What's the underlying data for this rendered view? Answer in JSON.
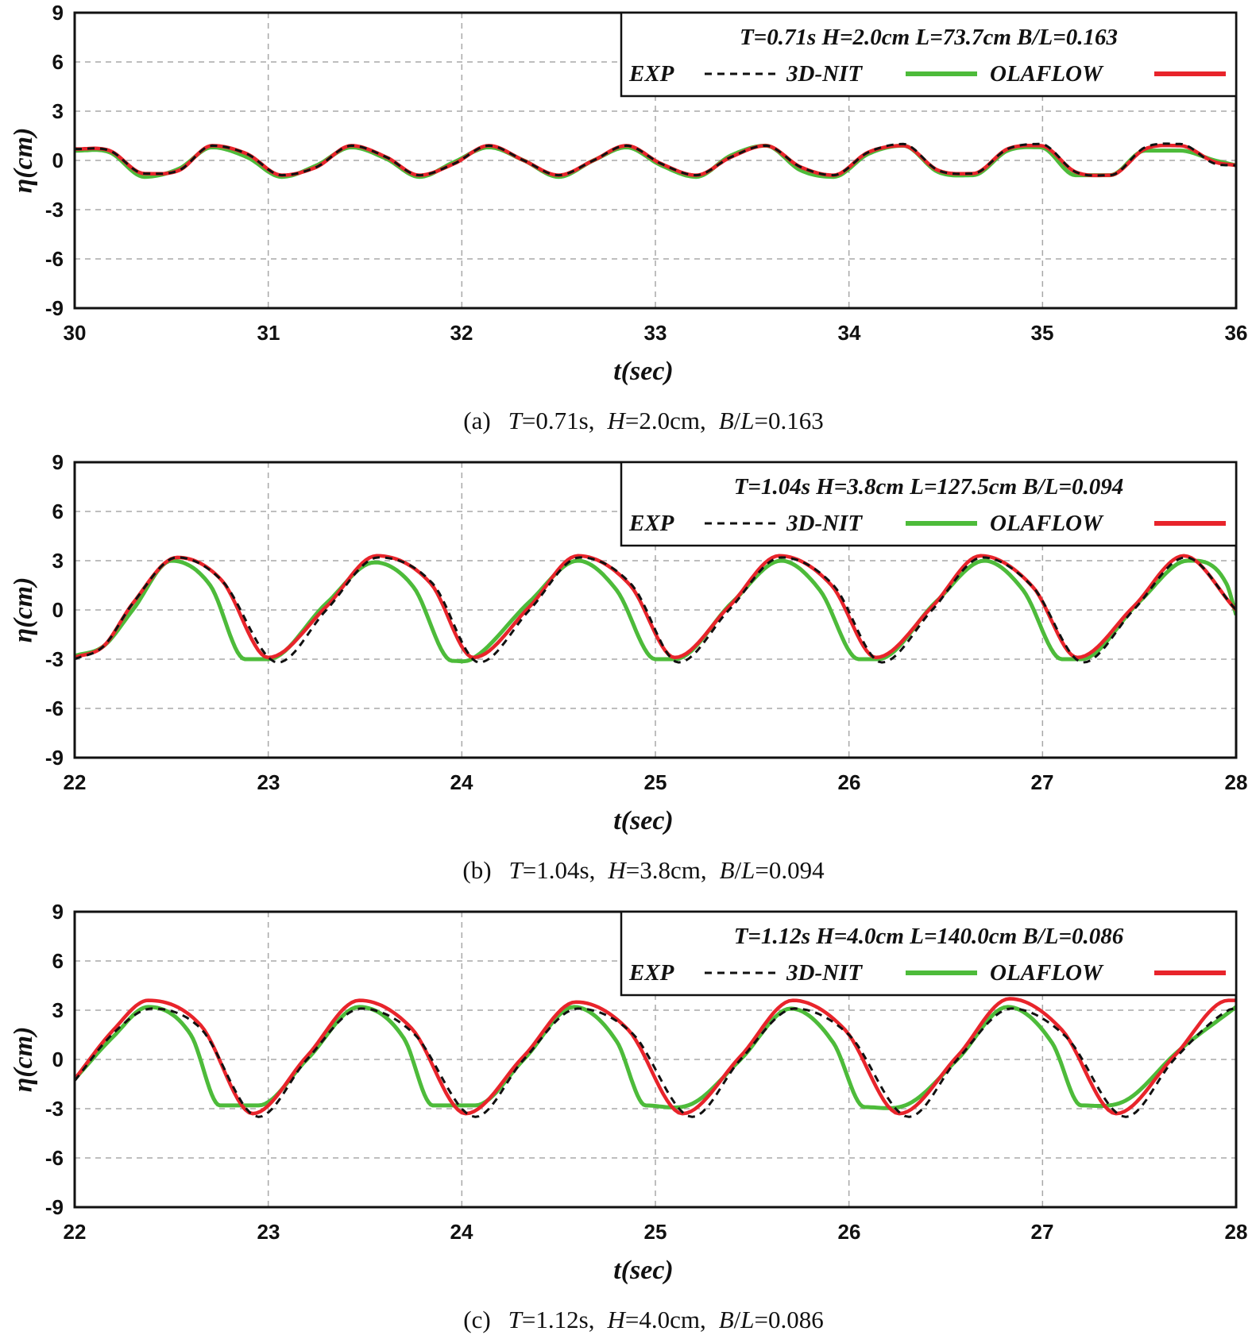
{
  "colors": {
    "exp": "#111111",
    "nit": "#4dbb3a",
    "ola": "#e8242b",
    "grid": "#a8a8a8",
    "frame": "#111111"
  },
  "legend_labels": {
    "exp": "EXP",
    "nit": "3D-NIT",
    "ola": "OLAFLOW"
  },
  "chart_data": [
    {
      "type": "line",
      "title": "T=0.71s  H=2.0cm  L=73.7cm  B/L=0.163",
      "xlabel": "t(sec)",
      "ylabel": "η(cm)",
      "xlim": [
        30,
        36
      ],
      "ylim": [
        -9,
        9
      ],
      "xticks": [
        "30",
        "31",
        "32",
        "33",
        "34",
        "35",
        "36"
      ],
      "yticks": [
        "9",
        "6",
        "3",
        "0",
        "-3",
        "-6",
        "-9"
      ],
      "grid": true,
      "legend_position": "top-right",
      "caption": {
        "prefix": "(a)",
        "T": "=0.71s,",
        "H": "=2.0cm,",
        "BL": "=0.163"
      },
      "series": [
        {
          "name": "EXP",
          "style": "dashed",
          "t_samples": [
            30.0,
            30.18,
            30.36,
            30.54,
            30.71,
            30.89,
            31.07,
            31.25,
            31.43,
            31.61,
            31.78,
            31.96,
            32.14,
            32.32,
            32.5,
            32.68,
            32.85,
            33.03,
            33.21,
            33.39,
            33.57,
            33.75,
            33.92,
            34.1,
            34.28,
            34.46,
            34.64,
            34.82,
            34.99,
            35.17,
            35.35,
            35.53,
            35.71,
            35.89,
            36.0
          ],
          "values": [
            0.7,
            0.6,
            -0.8,
            -0.6,
            0.9,
            0.4,
            -0.9,
            -0.4,
            0.9,
            0.2,
            -0.9,
            -0.2,
            0.9,
            0.0,
            -0.9,
            0.0,
            0.9,
            -0.2,
            -0.9,
            0.2,
            0.9,
            -0.4,
            -0.9,
            0.5,
            1.0,
            -0.6,
            -0.8,
            0.7,
            1.0,
            -0.7,
            -0.9,
            0.8,
            1.0,
            -0.2,
            -0.3
          ]
        },
        {
          "name": "3D-NIT",
          "style": "solid",
          "t_samples": [
            30.0,
            30.18,
            30.36,
            30.54,
            30.71,
            30.89,
            31.07,
            31.25,
            31.43,
            31.61,
            31.78,
            31.96,
            32.14,
            32.32,
            32.5,
            32.68,
            32.85,
            33.03,
            33.21,
            33.39,
            33.57,
            33.75,
            33.92,
            34.1,
            34.28,
            34.46,
            34.64,
            34.82,
            34.99,
            35.17,
            35.35,
            35.53,
            35.71,
            35.89,
            36.0
          ],
          "values": [
            0.6,
            0.5,
            -1.0,
            -0.5,
            0.8,
            0.2,
            -1.0,
            -0.3,
            0.8,
            0.1,
            -1.0,
            -0.1,
            0.8,
            0.0,
            -1.0,
            0.0,
            0.8,
            -0.3,
            -1.0,
            0.3,
            0.9,
            -0.6,
            -1.0,
            0.4,
            0.9,
            -0.7,
            -0.9,
            0.6,
            0.8,
            -0.9,
            -0.9,
            0.6,
            0.6,
            0.0,
            -0.3
          ]
        },
        {
          "name": "OLAFLOW",
          "style": "solid",
          "t_samples": [
            30.0,
            30.18,
            30.36,
            30.54,
            30.71,
            30.89,
            31.07,
            31.25,
            31.43,
            31.61,
            31.78,
            31.96,
            32.14,
            32.32,
            32.5,
            32.68,
            32.85,
            33.03,
            33.21,
            33.39,
            33.57,
            33.75,
            33.92,
            34.1,
            34.28,
            34.46,
            34.64,
            34.82,
            34.99,
            35.17,
            35.35,
            35.53,
            35.71,
            35.89,
            36.0
          ],
          "values": [
            0.7,
            0.6,
            -0.8,
            -0.6,
            0.9,
            0.4,
            -0.9,
            -0.4,
            0.9,
            0.2,
            -0.9,
            -0.2,
            0.9,
            0.0,
            -0.9,
            0.0,
            0.9,
            -0.2,
            -0.9,
            0.2,
            0.9,
            -0.4,
            -0.9,
            0.5,
            0.9,
            -0.6,
            -0.8,
            0.7,
            0.9,
            -0.7,
            -0.9,
            0.7,
            0.9,
            -0.1,
            -0.3
          ]
        }
      ]
    },
    {
      "type": "line",
      "title": "T=1.04s  H=3.8cm  L=127.5cm  B/L=0.094",
      "xlabel": "t(sec)",
      "ylabel": "η(cm)",
      "xlim": [
        22,
        28
      ],
      "ylim": [
        -9,
        9
      ],
      "xticks": [
        "22",
        "23",
        "24",
        "25",
        "26",
        "27",
        "28"
      ],
      "yticks": [
        "9",
        "6",
        "3",
        "0",
        "-3",
        "-6",
        "-9"
      ],
      "grid": true,
      "legend_position": "top-right",
      "caption": {
        "prefix": "(b)",
        "T": "=1.04s,",
        "H": "=3.8cm,",
        "BL": "=0.094"
      },
      "series": [
        {
          "name": "EXP",
          "style": "dashed",
          "t_samples": [
            22.0,
            22.15,
            22.3,
            22.53,
            22.76,
            23.05,
            23.3,
            23.57,
            23.85,
            24.09,
            24.35,
            24.61,
            24.88,
            25.12,
            25.38,
            25.65,
            25.92,
            26.17,
            26.43,
            26.69,
            26.95,
            27.21,
            27.47,
            27.74,
            28.0
          ],
          "values": [
            -3.0,
            -2.2,
            0.4,
            3.2,
            1.8,
            -3.2,
            0.0,
            3.2,
            1.6,
            -3.2,
            0.0,
            3.2,
            1.5,
            -3.2,
            0.0,
            3.2,
            1.5,
            -3.2,
            0.0,
            3.2,
            1.4,
            -3.2,
            0.0,
            3.2,
            0.0
          ]
        },
        {
          "name": "3D-NIT",
          "style": "solid",
          "t_samples": [
            22.0,
            22.15,
            22.3,
            22.5,
            22.7,
            22.88,
            23.0,
            23.3,
            23.55,
            23.75,
            23.95,
            24.05,
            24.35,
            24.6,
            24.8,
            25.0,
            25.1,
            25.4,
            25.65,
            25.85,
            26.05,
            26.15,
            26.45,
            26.7,
            26.9,
            27.1,
            27.2,
            27.5,
            27.75,
            27.95,
            28.0
          ],
          "values": [
            -2.8,
            -2.2,
            0.0,
            3.0,
            1.5,
            -3.0,
            -3.0,
            0.4,
            2.9,
            1.4,
            -3.1,
            -3.0,
            0.5,
            3.0,
            1.2,
            -3.0,
            -3.0,
            0.5,
            3.0,
            1.2,
            -3.0,
            -3.0,
            0.5,
            3.0,
            1.2,
            -3.0,
            -3.0,
            0.5,
            3.0,
            1.6,
            -0.3
          ]
        },
        {
          "name": "OLAFLOW",
          "style": "solid",
          "t_samples": [
            22.0,
            22.15,
            22.3,
            22.53,
            22.76,
            23.0,
            23.3,
            23.56,
            23.84,
            24.06,
            24.35,
            24.6,
            24.87,
            25.1,
            25.38,
            25.64,
            25.91,
            26.14,
            26.43,
            26.68,
            26.95,
            27.18,
            27.47,
            27.73,
            28.0
          ],
          "values": [
            -2.9,
            -2.2,
            0.4,
            3.2,
            1.8,
            -2.9,
            0.2,
            3.3,
            1.6,
            -2.9,
            0.2,
            3.3,
            1.5,
            -2.9,
            0.2,
            3.3,
            1.5,
            -2.9,
            0.2,
            3.3,
            1.4,
            -2.9,
            0.2,
            3.3,
            0.0
          ]
        }
      ]
    },
    {
      "type": "line",
      "title": "T=1.12s  H=4.0cm  L=140.0cm  B/L=0.086",
      "xlabel": "t(sec)",
      "ylabel": "η(cm)",
      "xlim": [
        22,
        28
      ],
      "ylim": [
        -9,
        9
      ],
      "xticks": [
        "22",
        "23",
        "24",
        "25",
        "26",
        "27",
        "28"
      ],
      "yticks": [
        "9",
        "6",
        "3",
        "0",
        "-3",
        "-6",
        "-9"
      ],
      "grid": true,
      "legend_position": "top-right",
      "caption": {
        "prefix": "(c)",
        "T": "=1.12s,",
        "H": "=4.0cm,",
        "BL": "=0.086"
      },
      "series": [
        {
          "name": "EXP",
          "style": "dashed",
          "t_samples": [
            22.0,
            22.2,
            22.4,
            22.65,
            22.95,
            23.2,
            23.48,
            23.75,
            24.07,
            24.32,
            24.6,
            24.88,
            25.19,
            25.44,
            25.72,
            26.0,
            26.31,
            26.56,
            26.84,
            27.12,
            27.43,
            27.68,
            27.96,
            28.0
          ],
          "values": [
            -1.3,
            1.6,
            3.1,
            1.9,
            -3.5,
            0.0,
            3.1,
            1.6,
            -3.5,
            0.0,
            3.1,
            1.6,
            -3.5,
            0.0,
            3.1,
            1.5,
            -3.5,
            0.0,
            3.1,
            1.4,
            -3.5,
            0.0,
            3.0,
            3.1
          ]
        },
        {
          "name": "3D-NIT",
          "style": "solid",
          "t_samples": [
            22.0,
            22.2,
            22.38,
            22.6,
            22.75,
            22.95,
            23.2,
            23.47,
            23.7,
            23.85,
            24.07,
            24.32,
            24.58,
            24.8,
            24.95,
            25.19,
            25.44,
            25.7,
            25.92,
            26.08,
            26.31,
            26.56,
            26.82,
            27.05,
            27.2,
            27.43,
            27.7,
            28.0
          ],
          "values": [
            -1.2,
            1.4,
            3.2,
            1.5,
            -2.8,
            -2.8,
            0.0,
            3.2,
            1.3,
            -2.8,
            -2.8,
            0.0,
            3.2,
            1.1,
            -2.8,
            -2.7,
            0.0,
            3.1,
            1.0,
            -2.9,
            -2.7,
            0.0,
            3.2,
            1.0,
            -2.8,
            -2.5,
            0.5,
            3.2
          ]
        },
        {
          "name": "OLAFLOW",
          "style": "solid",
          "t_samples": [
            22.0,
            22.2,
            22.38,
            22.65,
            22.92,
            23.2,
            23.47,
            23.74,
            24.02,
            24.32,
            24.59,
            24.86,
            25.14,
            25.44,
            25.71,
            25.98,
            26.26,
            26.56,
            26.83,
            27.1,
            27.38,
            27.68,
            27.96,
            28.0
          ],
          "values": [
            -1.2,
            1.8,
            3.6,
            2.1,
            -3.3,
            0.2,
            3.6,
            1.9,
            -3.3,
            0.2,
            3.5,
            1.8,
            -3.3,
            0.2,
            3.6,
            1.8,
            -3.3,
            0.2,
            3.7,
            1.8,
            -3.3,
            0.2,
            3.6,
            3.6
          ]
        }
      ]
    }
  ]
}
